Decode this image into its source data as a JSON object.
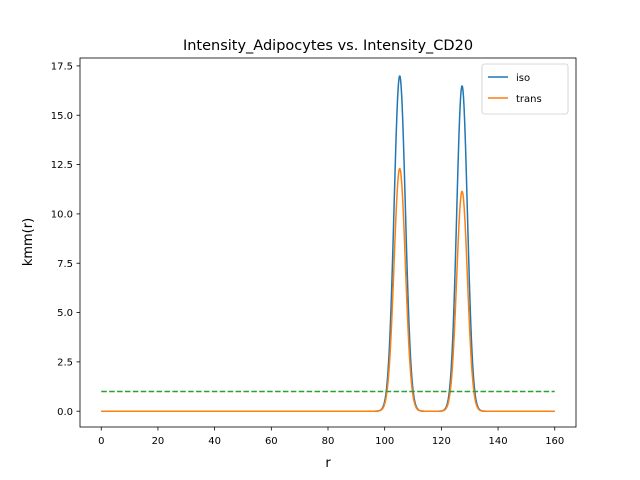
{
  "chart_data": {
    "type": "line",
    "title": "Intensity_Adipocytes vs. Intensity_CD20",
    "xlabel": "r",
    "ylabel": "kmm(r)",
    "xlim": [
      -7.5,
      167.5
    ],
    "ylim": [
      -0.8,
      17.9
    ],
    "xticks": [
      0,
      20,
      40,
      60,
      80,
      100,
      120,
      140,
      160
    ],
    "yticks": [
      0.0,
      2.5,
      5.0,
      7.5,
      10.0,
      12.5,
      15.0,
      17.5
    ],
    "ytick_labels": [
      "0.0",
      "2.5",
      "5.0",
      "7.5",
      "10.0",
      "12.5",
      "15.0",
      "17.5"
    ],
    "grid": false,
    "legend_position": "top-right",
    "series": [
      {
        "name": "iso",
        "color": "#1f77b4",
        "style": "solid",
        "peaks": [
          {
            "x": 105.3,
            "height": 17.0,
            "width": 2.0
          },
          {
            "x": 127.3,
            "height": 16.5,
            "width": 1.9
          }
        ],
        "baseline": 0.0
      },
      {
        "name": "trans",
        "color": "#ff7f0e",
        "style": "solid",
        "peaks": [
          {
            "x": 105.3,
            "height": 12.3,
            "width": 2.0
          },
          {
            "x": 127.3,
            "height": 11.15,
            "width": 1.9
          }
        ],
        "baseline": 0.0
      },
      {
        "color": "#2ca02c",
        "style": "dashed",
        "x": [
          0,
          160
        ],
        "values": [
          1.0,
          1.0
        ]
      }
    ]
  }
}
